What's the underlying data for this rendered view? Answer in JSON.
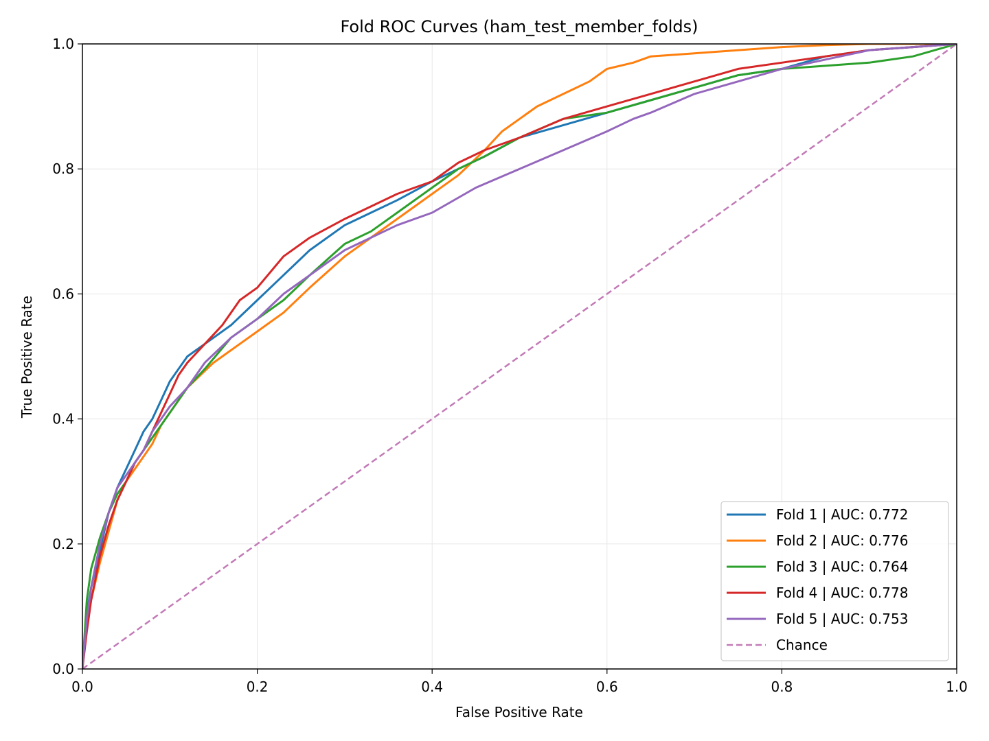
{
  "chart_data": {
    "type": "line",
    "title": "Fold ROC Curves (ham_test_member_folds)",
    "xlabel": "False Positive Rate",
    "ylabel": "True Positive Rate",
    "xlim": [
      0,
      1
    ],
    "ylim": [
      0,
      1
    ],
    "xticks": [
      "0.0",
      "0.2",
      "0.4",
      "0.6",
      "0.8",
      "1.0"
    ],
    "yticks": [
      "0.0",
      "0.2",
      "0.4",
      "0.6",
      "0.8",
      "1.0"
    ],
    "grid": true,
    "legend_position": "lower-right",
    "series": [
      {
        "name": "Fold 1 | AUC: 0.772",
        "color": "#1f77b4",
        "x": [
          0,
          0.005,
          0.01,
          0.02,
          0.03,
          0.04,
          0.05,
          0.06,
          0.07,
          0.08,
          0.09,
          0.1,
          0.11,
          0.12,
          0.13,
          0.15,
          0.17,
          0.2,
          0.23,
          0.26,
          0.3,
          0.33,
          0.36,
          0.4,
          0.43,
          0.46,
          0.5,
          0.55,
          0.6,
          0.65,
          0.7,
          0.75,
          0.8,
          0.85,
          0.9,
          0.95,
          1.0
        ],
        "y": [
          0,
          0.09,
          0.13,
          0.19,
          0.25,
          0.29,
          0.32,
          0.35,
          0.38,
          0.4,
          0.43,
          0.46,
          0.48,
          0.5,
          0.51,
          0.53,
          0.55,
          0.59,
          0.63,
          0.67,
          0.71,
          0.73,
          0.75,
          0.78,
          0.8,
          0.82,
          0.85,
          0.87,
          0.89,
          0.91,
          0.93,
          0.95,
          0.96,
          0.98,
          0.99,
          0.995,
          1.0
        ]
      },
      {
        "name": "Fold 2 | AUC: 0.776",
        "color": "#ff7f0e",
        "x": [
          0,
          0.005,
          0.01,
          0.02,
          0.03,
          0.04,
          0.05,
          0.06,
          0.07,
          0.08,
          0.09,
          0.1,
          0.12,
          0.15,
          0.18,
          0.2,
          0.23,
          0.26,
          0.3,
          0.33,
          0.36,
          0.4,
          0.43,
          0.46,
          0.48,
          0.5,
          0.52,
          0.55,
          0.58,
          0.6,
          0.63,
          0.65,
          0.7,
          0.75,
          0.8,
          0.85,
          0.9,
          1.0
        ],
        "y": [
          0,
          0.08,
          0.11,
          0.17,
          0.22,
          0.27,
          0.3,
          0.32,
          0.34,
          0.36,
          0.39,
          0.41,
          0.45,
          0.49,
          0.52,
          0.54,
          0.57,
          0.61,
          0.66,
          0.69,
          0.72,
          0.76,
          0.79,
          0.83,
          0.86,
          0.88,
          0.9,
          0.92,
          0.94,
          0.96,
          0.97,
          0.98,
          0.985,
          0.99,
          0.995,
          0.998,
          1.0,
          1.0
        ]
      },
      {
        "name": "Fold 3 | AUC: 0.764",
        "color": "#2ca02c",
        "x": [
          0,
          0.005,
          0.01,
          0.02,
          0.03,
          0.04,
          0.05,
          0.06,
          0.07,
          0.08,
          0.09,
          0.1,
          0.12,
          0.14,
          0.17,
          0.2,
          0.23,
          0.26,
          0.3,
          0.33,
          0.36,
          0.4,
          0.43,
          0.46,
          0.5,
          0.55,
          0.6,
          0.65,
          0.7,
          0.75,
          0.8,
          0.85,
          0.9,
          0.95,
          1.0
        ],
        "y": [
          0,
          0.11,
          0.16,
          0.21,
          0.25,
          0.28,
          0.3,
          0.33,
          0.35,
          0.37,
          0.39,
          0.41,
          0.45,
          0.48,
          0.53,
          0.56,
          0.59,
          0.63,
          0.68,
          0.7,
          0.73,
          0.77,
          0.8,
          0.82,
          0.85,
          0.88,
          0.89,
          0.91,
          0.93,
          0.95,
          0.96,
          0.965,
          0.97,
          0.98,
          1.0
        ]
      },
      {
        "name": "Fold 4 | AUC: 0.778",
        "color": "#d62728",
        "x": [
          0,
          0.005,
          0.01,
          0.02,
          0.03,
          0.04,
          0.05,
          0.06,
          0.07,
          0.08,
          0.09,
          0.1,
          0.11,
          0.12,
          0.14,
          0.16,
          0.18,
          0.2,
          0.23,
          0.26,
          0.3,
          0.33,
          0.36,
          0.4,
          0.43,
          0.46,
          0.5,
          0.55,
          0.6,
          0.65,
          0.7,
          0.75,
          0.8,
          0.85,
          0.9,
          0.95,
          1.0
        ],
        "y": [
          0,
          0.06,
          0.11,
          0.18,
          0.23,
          0.27,
          0.3,
          0.33,
          0.35,
          0.38,
          0.41,
          0.44,
          0.47,
          0.49,
          0.52,
          0.55,
          0.59,
          0.61,
          0.66,
          0.69,
          0.72,
          0.74,
          0.76,
          0.78,
          0.81,
          0.83,
          0.85,
          0.88,
          0.9,
          0.92,
          0.94,
          0.96,
          0.97,
          0.98,
          0.99,
          0.995,
          1.0
        ]
      },
      {
        "name": "Fold 5 | AUC: 0.753",
        "color": "#9467bd",
        "x": [
          0,
          0.005,
          0.01,
          0.02,
          0.03,
          0.04,
          0.05,
          0.06,
          0.07,
          0.08,
          0.09,
          0.1,
          0.12,
          0.14,
          0.17,
          0.2,
          0.23,
          0.26,
          0.3,
          0.33,
          0.36,
          0.4,
          0.45,
          0.5,
          0.55,
          0.6,
          0.63,
          0.65,
          0.7,
          0.75,
          0.8,
          0.85,
          0.9,
          0.95,
          1.0
        ],
        "y": [
          0,
          0.08,
          0.13,
          0.2,
          0.25,
          0.29,
          0.31,
          0.33,
          0.35,
          0.38,
          0.4,
          0.42,
          0.45,
          0.49,
          0.53,
          0.56,
          0.6,
          0.63,
          0.67,
          0.69,
          0.71,
          0.73,
          0.77,
          0.8,
          0.83,
          0.86,
          0.88,
          0.89,
          0.92,
          0.94,
          0.96,
          0.975,
          0.99,
          0.995,
          1.0
        ]
      }
    ],
    "reference_line": {
      "name": "Chance",
      "color": "#c27ab6",
      "style": "dashed",
      "x": [
        0,
        1
      ],
      "y": [
        0,
        1
      ]
    }
  }
}
